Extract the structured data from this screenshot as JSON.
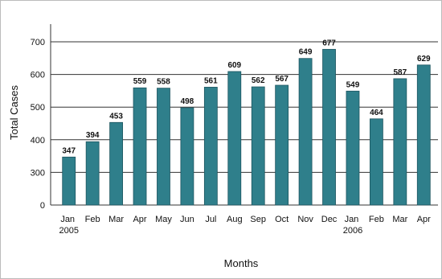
{
  "chart_data": {
    "type": "bar",
    "y_label": "Total Cases",
    "x_label": "Months",
    "categories": [
      "Jan 2005",
      "Feb",
      "Mar",
      "Apr",
      "May",
      "Jun",
      "Jul",
      "Aug",
      "Sep",
      "Oct",
      "Nov",
      "Dec",
      "Jan 2006",
      "Feb",
      "Mar",
      "Apr"
    ],
    "values": [
      347,
      394,
      453,
      559,
      558,
      498,
      561,
      609,
      562,
      567,
      649,
      677,
      549,
      464,
      587,
      629
    ],
    "color": "#2f7f8b",
    "ylim": [
      200,
      700
    ],
    "yticks": [
      {
        "value": 200,
        "label": "0"
      },
      300,
      400,
      500,
      600,
      700
    ],
    "grid": true
  }
}
